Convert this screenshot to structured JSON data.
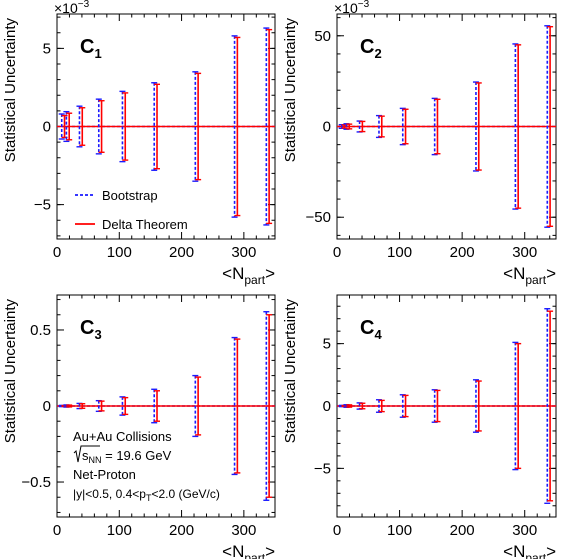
{
  "colors": {
    "bootstrap": "#1a1aff",
    "delta": "#ff0000",
    "axis": "#000000"
  },
  "shared": {
    "ylabel": "Statistical Uncertainty",
    "xlabel_base": "<N",
    "xlabel_sub": "part",
    "xlabel_end": ">",
    "legend": {
      "bootstrap": "Bootstrap",
      "delta": "Delta Theorem"
    },
    "info": {
      "line1": "Au+Au Collisions",
      "line2a": "s",
      "line2b": "NN",
      "line2c": " = 19.6 GeV",
      "line3": "Net-Proton",
      "line4a": "|y|<0.5, 0.4<p",
      "line4b": "T",
      "line4c": "<2.0 (GeV/c)"
    }
  },
  "chart_data": [
    {
      "type": "errorbar",
      "panel_label_main": "C",
      "panel_label_sub": "1",
      "multiplier": "×10",
      "multiplier_exp": "−3",
      "xlim": [
        0,
        350
      ],
      "ylim": [
        -7.2,
        7.2
      ],
      "xticks": [
        0,
        100,
        200,
        300
      ],
      "xtick_labels": [
        "0",
        "100",
        "200",
        "300"
      ],
      "yticks": [
        -5,
        0,
        5
      ],
      "ytick_labels": [
        "−5",
        "0",
        "5"
      ],
      "x": [
        9.5,
        17,
        38,
        69,
        107,
        158,
        224,
        287,
        338
      ],
      "bootstrap_err": [
        0.8,
        0.95,
        1.3,
        1.75,
        2.25,
        2.8,
        3.5,
        5.8,
        6.3
      ],
      "delta_err": [
        0.7,
        0.85,
        1.2,
        1.65,
        2.15,
        2.7,
        3.4,
        5.7,
        6.2
      ],
      "legend": "bottom-left"
    },
    {
      "type": "errorbar",
      "panel_label_main": "C",
      "panel_label_sub": "2",
      "multiplier": "×10",
      "multiplier_exp": "−3",
      "xlim": [
        0,
        350
      ],
      "ylim": [
        -62,
        62
      ],
      "xticks": [
        0,
        100,
        200,
        300
      ],
      "xtick_labels": [
        "0",
        "100",
        "200",
        "300"
      ],
      "yticks": [
        -50,
        0,
        50
      ],
      "ytick_labels": [
        "−50",
        "0",
        "50"
      ],
      "x": [
        9.5,
        17,
        38,
        69,
        107,
        158,
        224,
        287,
        338
      ],
      "bootstrap_err": [
        1.0,
        1.5,
        3.0,
        6.0,
        10.0,
        15.5,
        24.5,
        45.5,
        55.5
      ],
      "delta_err": [
        0.9,
        1.3,
        2.8,
        5.7,
        9.5,
        15.0,
        24.0,
        45.0,
        55.0
      ]
    },
    {
      "type": "errorbar",
      "panel_label_main": "C",
      "panel_label_sub": "3",
      "xlim": [
        0,
        350
      ],
      "ylim": [
        -0.73,
        0.73
      ],
      "xticks": [
        0,
        100,
        200,
        300
      ],
      "xtick_labels": [
        "0",
        "100",
        "200",
        "300"
      ],
      "yticks": [
        -0.5,
        0,
        0.5
      ],
      "ytick_labels": [
        "−0.5",
        "0",
        "0.5"
      ],
      "x": [
        9.5,
        17,
        38,
        69,
        107,
        158,
        224,
        287,
        338
      ],
      "bootstrap_err": [
        0.004,
        0.007,
        0.017,
        0.035,
        0.06,
        0.11,
        0.2,
        0.45,
        0.62
      ],
      "delta_err": [
        0.003,
        0.006,
        0.015,
        0.032,
        0.055,
        0.1,
        0.19,
        0.44,
        0.6
      ]
    },
    {
      "type": "errorbar",
      "panel_label_main": "C",
      "panel_label_sub": "4",
      "xlim": [
        0,
        350
      ],
      "ylim": [
        -8.9,
        8.9
      ],
      "xticks": [
        0,
        100,
        200,
        300
      ],
      "xtick_labels": [
        "0",
        "100",
        "200",
        "300"
      ],
      "yticks": [
        -5,
        0,
        5
      ],
      "ytick_labels": [
        "−5",
        "0",
        "5"
      ],
      "x": [
        9.5,
        17,
        38,
        69,
        107,
        158,
        224,
        287,
        338
      ],
      "bootstrap_err": [
        0.05,
        0.1,
        0.25,
        0.5,
        0.9,
        1.3,
        2.1,
        5.1,
        7.8
      ],
      "delta_err": [
        0.04,
        0.09,
        0.22,
        0.45,
        0.85,
        1.25,
        2.0,
        5.0,
        7.6
      ]
    }
  ]
}
